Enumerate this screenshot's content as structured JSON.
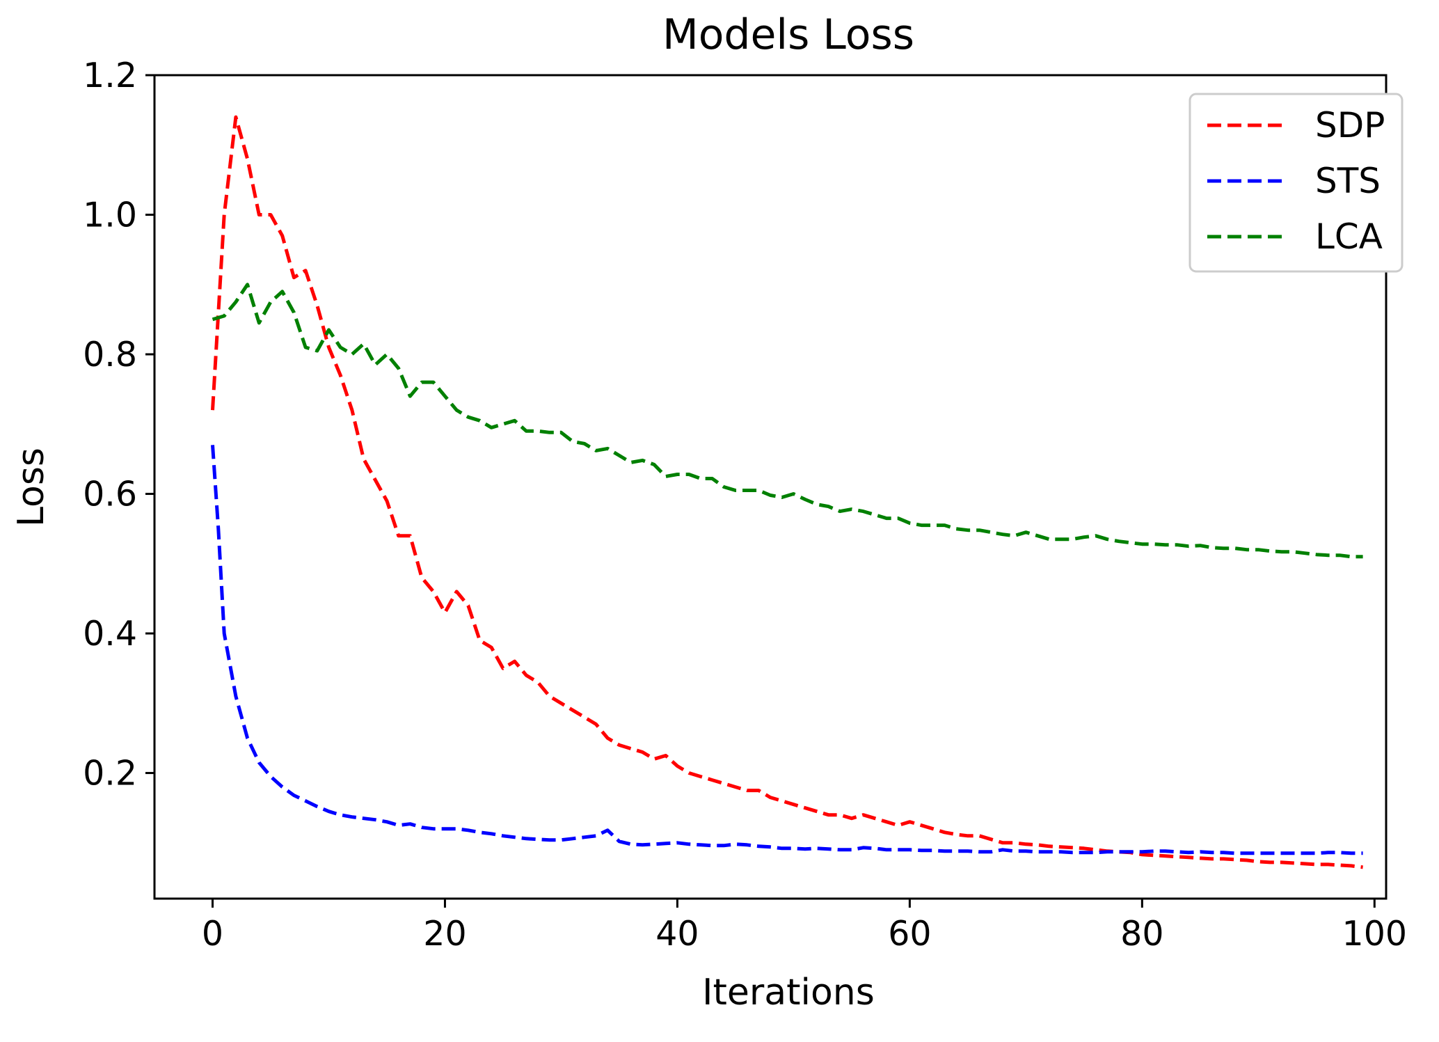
{
  "chart_data": {
    "type": "line",
    "title": "Models Loss",
    "xlabel": "Iterations",
    "ylabel": "Loss",
    "xlim": [
      -5,
      101
    ],
    "ylim": [
      0.02,
      1.2
    ],
    "xticks": [
      0,
      20,
      40,
      60,
      80,
      100
    ],
    "xtick_labels": [
      "0",
      "20",
      "40",
      "60",
      "80",
      "100"
    ],
    "yticks": [
      0.2,
      0.4,
      0.6,
      0.8,
      1.0,
      1.2
    ],
    "ytick_labels": [
      "0.2",
      "0.4",
      "0.6",
      "0.8",
      "1.0",
      "1.2"
    ],
    "grid": false,
    "legend_position": "top-right",
    "series": [
      {
        "name": "SDP",
        "color": "#ff0000",
        "style": "dashed",
        "points": [
          [
            0,
            0.72
          ],
          [
            1,
            1.0
          ],
          [
            2,
            1.14
          ],
          [
            3,
            1.08
          ],
          [
            4,
            1.0
          ],
          [
            5,
            1.0
          ],
          [
            6,
            0.97
          ],
          [
            7,
            0.91
          ],
          [
            8,
            0.92
          ],
          [
            9,
            0.87
          ],
          [
            10,
            0.81
          ],
          [
            11,
            0.77
          ],
          [
            12,
            0.72
          ],
          [
            13,
            0.65
          ],
          [
            14,
            0.62
          ],
          [
            15,
            0.59
          ],
          [
            16,
            0.54
          ],
          [
            17,
            0.54
          ],
          [
            18,
            0.48
          ],
          [
            19,
            0.46
          ],
          [
            20,
            0.43
          ],
          [
            21,
            0.46
          ],
          [
            22,
            0.44
          ],
          [
            23,
            0.39
          ],
          [
            24,
            0.38
          ],
          [
            25,
            0.35
          ],
          [
            26,
            0.36
          ],
          [
            27,
            0.34
          ],
          [
            28,
            0.33
          ],
          [
            29,
            0.31
          ],
          [
            30,
            0.3
          ],
          [
            31,
            0.29
          ],
          [
            32,
            0.28
          ],
          [
            33,
            0.27
          ],
          [
            34,
            0.25
          ],
          [
            35,
            0.24
          ],
          [
            36,
            0.235
          ],
          [
            37,
            0.23
          ],
          [
            38,
            0.22
          ],
          [
            39,
            0.225
          ],
          [
            40,
            0.21
          ],
          [
            41,
            0.2
          ],
          [
            42,
            0.195
          ],
          [
            43,
            0.19
          ],
          [
            44,
            0.185
          ],
          [
            45,
            0.18
          ],
          [
            46,
            0.175
          ],
          [
            47,
            0.175
          ],
          [
            48,
            0.165
          ],
          [
            49,
            0.16
          ],
          [
            50,
            0.155
          ],
          [
            51,
            0.15
          ],
          [
            52,
            0.145
          ],
          [
            53,
            0.14
          ],
          [
            54,
            0.14
          ],
          [
            55,
            0.135
          ],
          [
            56,
            0.14
          ],
          [
            57,
            0.135
          ],
          [
            58,
            0.13
          ],
          [
            59,
            0.125
          ],
          [
            60,
            0.13
          ],
          [
            61,
            0.125
          ],
          [
            62,
            0.12
          ],
          [
            63,
            0.115
          ],
          [
            64,
            0.112
          ],
          [
            65,
            0.11
          ],
          [
            66,
            0.11
          ],
          [
            67,
            0.105
          ],
          [
            68,
            0.1
          ],
          [
            69,
            0.1
          ],
          [
            70,
            0.098
          ],
          [
            71,
            0.097
          ],
          [
            72,
            0.095
          ],
          [
            73,
            0.094
          ],
          [
            74,
            0.093
          ],
          [
            75,
            0.092
          ],
          [
            76,
            0.09
          ],
          [
            77,
            0.088
          ],
          [
            78,
            0.087
          ],
          [
            79,
            0.086
          ],
          [
            80,
            0.083
          ],
          [
            81,
            0.082
          ],
          [
            82,
            0.081
          ],
          [
            83,
            0.08
          ],
          [
            84,
            0.079
          ],
          [
            85,
            0.078
          ],
          [
            86,
            0.077
          ],
          [
            87,
            0.077
          ],
          [
            88,
            0.076
          ],
          [
            89,
            0.075
          ],
          [
            90,
            0.073
          ],
          [
            91,
            0.072
          ],
          [
            92,
            0.072
          ],
          [
            93,
            0.071
          ],
          [
            94,
            0.07
          ],
          [
            95,
            0.069
          ],
          [
            96,
            0.069
          ],
          [
            97,
            0.068
          ],
          [
            98,
            0.067
          ],
          [
            99,
            0.065
          ]
        ]
      },
      {
        "name": "STS",
        "color": "#0000ff",
        "style": "dashed",
        "points": [
          [
            0,
            0.67
          ],
          [
            0.5,
            0.55
          ],
          [
            1,
            0.4
          ],
          [
            2,
            0.31
          ],
          [
            3,
            0.25
          ],
          [
            4,
            0.215
          ],
          [
            5,
            0.195
          ],
          [
            6,
            0.18
          ],
          [
            7,
            0.168
          ],
          [
            8,
            0.16
          ],
          [
            9,
            0.152
          ],
          [
            10,
            0.145
          ],
          [
            11,
            0.14
          ],
          [
            12,
            0.137
          ],
          [
            13,
            0.135
          ],
          [
            14,
            0.133
          ],
          [
            15,
            0.13
          ],
          [
            16,
            0.125
          ],
          [
            17,
            0.127
          ],
          [
            18,
            0.122
          ],
          [
            19,
            0.12
          ],
          [
            20,
            0.12
          ],
          [
            21,
            0.12
          ],
          [
            22,
            0.118
          ],
          [
            23,
            0.115
          ],
          [
            24,
            0.113
          ],
          [
            25,
            0.11
          ],
          [
            26,
            0.108
          ],
          [
            27,
            0.106
          ],
          [
            28,
            0.105
          ],
          [
            29,
            0.104
          ],
          [
            30,
            0.104
          ],
          [
            31,
            0.106
          ],
          [
            32,
            0.108
          ],
          [
            33,
            0.11
          ],
          [
            34,
            0.118
          ],
          [
            35,
            0.102
          ],
          [
            36,
            0.098
          ],
          [
            37,
            0.097
          ],
          [
            38,
            0.098
          ],
          [
            39,
            0.099
          ],
          [
            40,
            0.1
          ],
          [
            41,
            0.098
          ],
          [
            42,
            0.097
          ],
          [
            43,
            0.096
          ],
          [
            44,
            0.096
          ],
          [
            45,
            0.098
          ],
          [
            46,
            0.097
          ],
          [
            47,
            0.095
          ],
          [
            48,
            0.094
          ],
          [
            49,
            0.092
          ],
          [
            50,
            0.092
          ],
          [
            51,
            0.091
          ],
          [
            52,
            0.092
          ],
          [
            53,
            0.091
          ],
          [
            54,
            0.09
          ],
          [
            55,
            0.09
          ],
          [
            56,
            0.093
          ],
          [
            57,
            0.092
          ],
          [
            58,
            0.09
          ],
          [
            59,
            0.09
          ],
          [
            60,
            0.09
          ],
          [
            61,
            0.089
          ],
          [
            62,
            0.089
          ],
          [
            63,
            0.088
          ],
          [
            64,
            0.088
          ],
          [
            65,
            0.088
          ],
          [
            66,
            0.087
          ],
          [
            67,
            0.087
          ],
          [
            68,
            0.09
          ],
          [
            69,
            0.088
          ],
          [
            70,
            0.088
          ],
          [
            71,
            0.087
          ],
          [
            72,
            0.087
          ],
          [
            73,
            0.087
          ],
          [
            74,
            0.086
          ],
          [
            75,
            0.086
          ],
          [
            76,
            0.086
          ],
          [
            77,
            0.087
          ],
          [
            78,
            0.087
          ],
          [
            79,
            0.087
          ],
          [
            80,
            0.087
          ],
          [
            81,
            0.088
          ],
          [
            82,
            0.088
          ],
          [
            83,
            0.087
          ],
          [
            84,
            0.086
          ],
          [
            85,
            0.087
          ],
          [
            86,
            0.086
          ],
          [
            87,
            0.086
          ],
          [
            88,
            0.085
          ],
          [
            89,
            0.085
          ],
          [
            90,
            0.085
          ],
          [
            91,
            0.085
          ],
          [
            92,
            0.085
          ],
          [
            93,
            0.085
          ],
          [
            94,
            0.085
          ],
          [
            95,
            0.085
          ],
          [
            96,
            0.086
          ],
          [
            97,
            0.086
          ],
          [
            98,
            0.085
          ],
          [
            99,
            0.085
          ]
        ]
      },
      {
        "name": "LCA",
        "color": "#008000",
        "style": "dashed",
        "points": [
          [
            0,
            0.85
          ],
          [
            1,
            0.855
          ],
          [
            2,
            0.875
          ],
          [
            3,
            0.9
          ],
          [
            4,
            0.845
          ],
          [
            5,
            0.875
          ],
          [
            6,
            0.89
          ],
          [
            7,
            0.86
          ],
          [
            8,
            0.81
          ],
          [
            9,
            0.805
          ],
          [
            10,
            0.835
          ],
          [
            11,
            0.81
          ],
          [
            12,
            0.8
          ],
          [
            13,
            0.815
          ],
          [
            14,
            0.785
          ],
          [
            15,
            0.8
          ],
          [
            16,
            0.78
          ],
          [
            17,
            0.74
          ],
          [
            18,
            0.76
          ],
          [
            19,
            0.76
          ],
          [
            20,
            0.74
          ],
          [
            21,
            0.72
          ],
          [
            22,
            0.71
          ],
          [
            23,
            0.705
          ],
          [
            24,
            0.695
          ],
          [
            25,
            0.7
          ],
          [
            26,
            0.705
          ],
          [
            27,
            0.69
          ],
          [
            28,
            0.69
          ],
          [
            29,
            0.688
          ],
          [
            30,
            0.688
          ],
          [
            31,
            0.675
          ],
          [
            32,
            0.672
          ],
          [
            33,
            0.662
          ],
          [
            34,
            0.665
          ],
          [
            35,
            0.655
          ],
          [
            36,
            0.645
          ],
          [
            37,
            0.648
          ],
          [
            38,
            0.642
          ],
          [
            39,
            0.625
          ],
          [
            40,
            0.628
          ],
          [
            41,
            0.628
          ],
          [
            42,
            0.622
          ],
          [
            43,
            0.622
          ],
          [
            44,
            0.61
          ],
          [
            45,
            0.605
          ],
          [
            46,
            0.605
          ],
          [
            47,
            0.605
          ],
          [
            48,
            0.598
          ],
          [
            49,
            0.595
          ],
          [
            50,
            0.6
          ],
          [
            51,
            0.592
          ],
          [
            52,
            0.585
          ],
          [
            53,
            0.582
          ],
          [
            54,
            0.575
          ],
          [
            55,
            0.578
          ],
          [
            56,
            0.575
          ],
          [
            57,
            0.57
          ],
          [
            58,
            0.565
          ],
          [
            59,
            0.565
          ],
          [
            60,
            0.558
          ],
          [
            61,
            0.555
          ],
          [
            62,
            0.555
          ],
          [
            63,
            0.555
          ],
          [
            64,
            0.55
          ],
          [
            65,
            0.548
          ],
          [
            66,
            0.548
          ],
          [
            67,
            0.545
          ],
          [
            68,
            0.542
          ],
          [
            69,
            0.54
          ],
          [
            70,
            0.545
          ],
          [
            71,
            0.54
          ],
          [
            72,
            0.535
          ],
          [
            73,
            0.535
          ],
          [
            74,
            0.535
          ],
          [
            75,
            0.538
          ],
          [
            76,
            0.54
          ],
          [
            77,
            0.535
          ],
          [
            78,
            0.532
          ],
          [
            79,
            0.53
          ],
          [
            80,
            0.528
          ],
          [
            81,
            0.528
          ],
          [
            82,
            0.527
          ],
          [
            83,
            0.527
          ],
          [
            84,
            0.525
          ],
          [
            85,
            0.526
          ],
          [
            86,
            0.523
          ],
          [
            87,
            0.522
          ],
          [
            88,
            0.522
          ],
          [
            89,
            0.52
          ],
          [
            90,
            0.52
          ],
          [
            91,
            0.518
          ],
          [
            92,
            0.517
          ],
          [
            93,
            0.517
          ],
          [
            94,
            0.515
          ],
          [
            95,
            0.513
          ],
          [
            96,
            0.512
          ],
          [
            97,
            0.512
          ],
          [
            98,
            0.51
          ],
          [
            99,
            0.51
          ]
        ]
      }
    ]
  }
}
